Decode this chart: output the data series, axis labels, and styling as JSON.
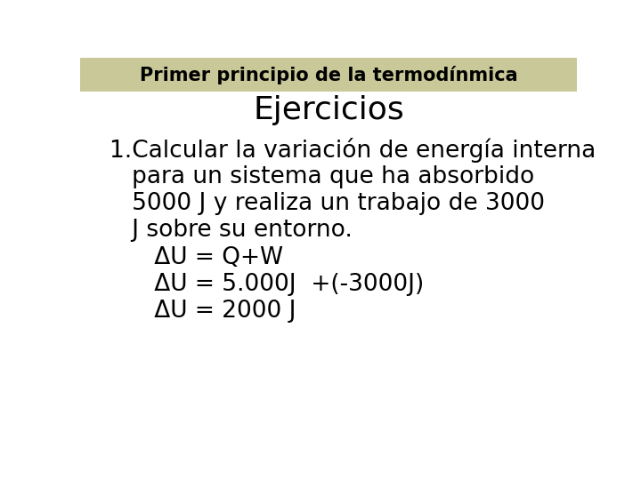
{
  "title": "Primer principio de la termodínmica",
  "title_bg_color": "#c8c898",
  "title_text_color": "#000000",
  "bg_color": "#ffffff",
  "subtitle": "Ejercicios",
  "body_lines": [
    "1.Calcular la variación de energía interna",
    "   para un sistema que ha absorbido",
    "   5000 J y realiza un trabajo de 3000",
    "   J sobre su entorno.",
    "      ΔU = Q+W",
    "      ΔU = 5.000J  +(-3000J)",
    "      ΔU = 2000 J"
  ],
  "title_fontsize": 15,
  "subtitle_fontsize": 26,
  "body_fontsize": 19,
  "title_font": "Comic Sans MS",
  "subtitle_font": "URW Bookman",
  "body_font": "Comic Sans MS"
}
